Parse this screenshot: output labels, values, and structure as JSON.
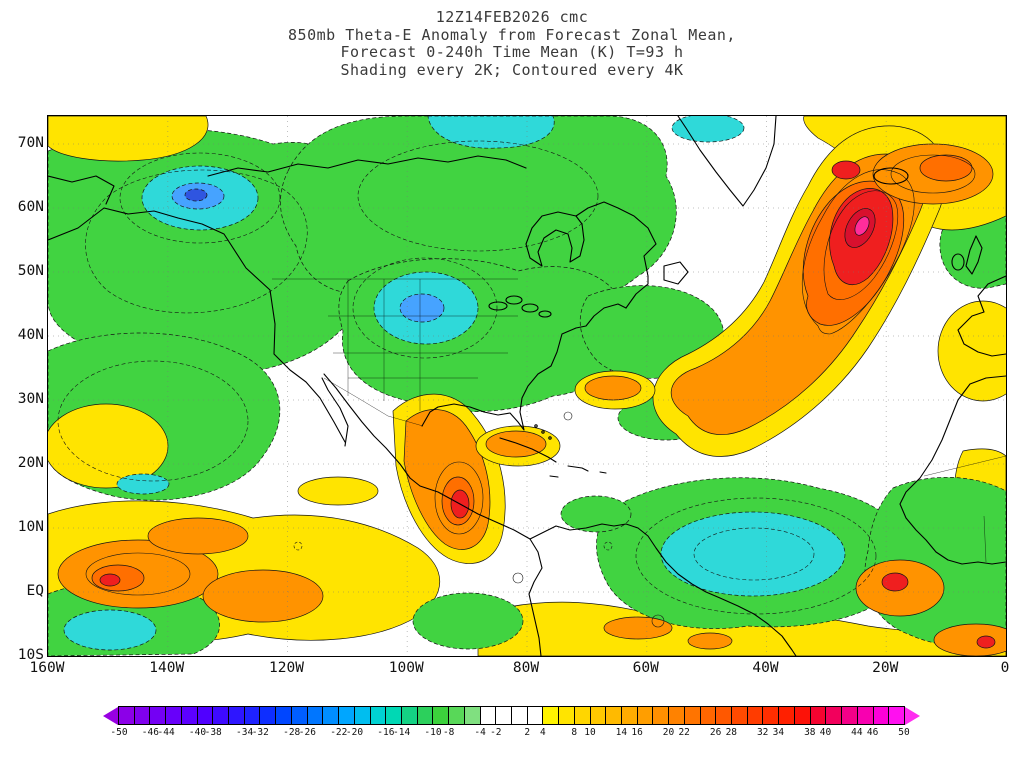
{
  "title": {
    "line1": "12Z14FEB2026  cmc",
    "line2": "850mb Theta-E Anomaly from Forecast Zonal Mean,",
    "line3": "Forecast 0-240h Time Mean (K) T=93 h",
    "line4": "Shading every 2K; Contoured every 4K"
  },
  "axes": {
    "lat_ticks": [
      "70N",
      "60N",
      "50N",
      "40N",
      "30N",
      "20N",
      "10N",
      "EQ",
      "10S"
    ],
    "lon_ticks": [
      "160W",
      "140W",
      "120W",
      "100W",
      "80W",
      "60W",
      "40W",
      "20W",
      "0"
    ]
  },
  "colorbar": {
    "min": -50,
    "max": 50,
    "step": 2,
    "tick_labels": [
      -50,
      -46,
      -44,
      -40,
      -38,
      -34,
      -32,
      -28,
      -26,
      -22,
      -20,
      -16,
      -14,
      -10,
      -8,
      -4,
      -2,
      2,
      4,
      8,
      10,
      14,
      16,
      20,
      22,
      26,
      28,
      32,
      34,
      38,
      40,
      44,
      46,
      50
    ],
    "arrow_left_color": "#9800e2",
    "arrow_right_color": "#ff2cf0",
    "cell_colors": [
      "#8c00e8",
      "#8000ee",
      "#7400f4",
      "#6800fa",
      "#5c00ff",
      "#5000ff",
      "#3e0aff",
      "#2e16ff",
      "#1e22ff",
      "#0e2eff",
      "#0046ff",
      "#005eff",
      "#0076ff",
      "#008eff",
      "#00a6ff",
      "#00beef",
      "#00d2d2",
      "#00d8b4",
      "#14d284",
      "#2cd05c",
      "#3cd23c",
      "#58d858",
      "#80e080",
      "#ffffff",
      "#ffffff",
      "#ffffff",
      "#ffffff",
      "#fff400",
      "#ffe400",
      "#ffd600",
      "#ffc800",
      "#ffba00",
      "#ffac00",
      "#ff9e00",
      "#ff9000",
      "#ff8200",
      "#ff7400",
      "#ff6600",
      "#ff5800",
      "#ff4a00",
      "#ff3c00",
      "#ff2e00",
      "#ff2000",
      "#fc1208",
      "#f60430",
      "#f2005c",
      "#f40088",
      "#f800b0",
      "#fc00d8",
      "#ff10f0"
    ]
  },
  "map_palette": {
    "green": "#41d341",
    "cyan": "#2fd9d9",
    "blue_light": "#46a3ff",
    "blue_deep": "#2f55e0",
    "yellow": "#ffe400",
    "orange": "#ff9300",
    "orange_deep": "#ff6f00",
    "red": "#ef1f1f",
    "red_deep": "#d8102e",
    "pink": "#ff2d9b"
  },
  "chart_data": {
    "type": "heatmap",
    "title": "850mb Theta-E Anomaly from Forecast Zonal Mean",
    "model": "cmc",
    "init_time": "12Z14FEB2026",
    "forecast": "0-240h Time Mean (K), T=93 h",
    "shading_interval_K": 2,
    "contour_interval_K": 4,
    "units": "K",
    "lon_range_deg": [
      -160,
      0
    ],
    "lat_range_deg": [
      -10,
      75
    ],
    "grid": "dotted graticule every 10 deg lat / 20 deg lon",
    "legend_position": "bottom colorbar, -50 to 50 K",
    "negative_contour_style": "dashed",
    "positive_contour_style": "solid",
    "features": [
      {
        "region": "Alaska / Yukon",
        "lon": -140,
        "lat": 64,
        "peak_anomaly_K": -26,
        "sign": "negative"
      },
      {
        "region": "Northern Great Plains (US)",
        "lon": -100,
        "lat": 45,
        "peak_anomaly_K": -24,
        "sign": "negative"
      },
      {
        "region": "Canada / Hudson Bay broad trough",
        "lon": -90,
        "lat": 60,
        "peak_anomaly_K": -12,
        "sign": "negative"
      },
      {
        "region": "Arctic north of Hudson Bay",
        "lon": -88,
        "lat": 75,
        "peak_anomaly_K": -18,
        "sign": "negative"
      },
      {
        "region": "North Atlantic south of Iceland",
        "lon": -26,
        "lat": 55,
        "peak_anomaly_K": 44,
        "sign": "positive"
      },
      {
        "region": "Far North Atlantic (near 68N 20W)",
        "lon": -20,
        "lat": 68,
        "peak_anomaly_K": 34,
        "sign": "positive"
      },
      {
        "region": "Mexico / Central America",
        "lon": -96,
        "lat": 19,
        "peak_anomaly_K": 28,
        "sign": "positive"
      },
      {
        "region": "Tropical central Atlantic",
        "lon": -40,
        "lat": 10,
        "peak_anomaly_K": -20,
        "sign": "negative"
      },
      {
        "region": "Equatorial central Pacific",
        "lon": -145,
        "lat": 3,
        "peak_anomaly_K": 24,
        "sign": "positive"
      },
      {
        "region": "Subtropical NE Pacific (yellow pocket)",
        "lon": -150,
        "lat": 30,
        "peak_anomaly_K": 6,
        "sign": "positive"
      },
      {
        "region": "West Africa / Gulf of Guinea coast",
        "lon": -12,
        "lat": 7,
        "peak_anomaly_K": 30,
        "sign": "positive"
      },
      {
        "region": "Northeast Atlantic / Europe top-right",
        "lon": -10,
        "lat": 70,
        "peak_anomaly_K": 26,
        "sign": "positive"
      }
    ]
  }
}
